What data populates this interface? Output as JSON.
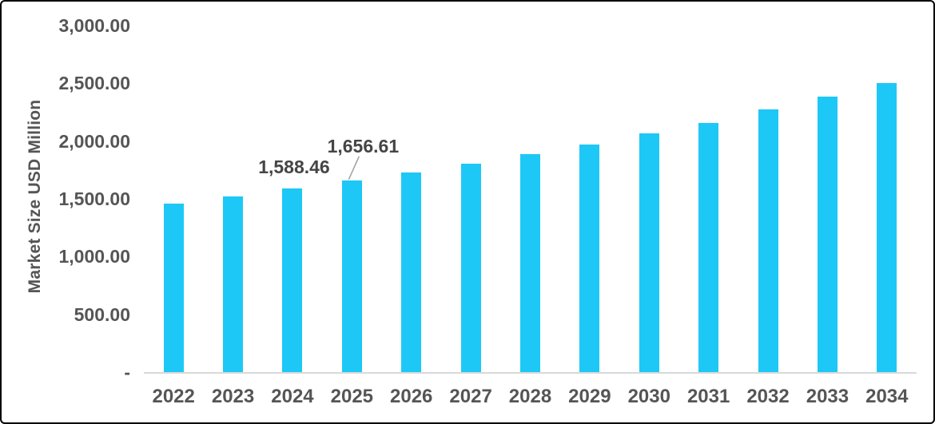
{
  "chart": {
    "y_axis": {
      "title": "Market Size USD Million",
      "tick_labels": [
        "3,000.00",
        "2,500.00",
        "2,000.00",
        "1,500.00",
        "1,000.00",
        "500.00",
        "-"
      ],
      "tick_values": [
        3000,
        2500,
        2000,
        1500,
        1000,
        500,
        0
      ]
    },
    "colors": {
      "bar": "#1dc8f6",
      "axis_text": "#555555",
      "data_label_text": "#454545",
      "baseline": "#d9d9d9",
      "leader_line": "#a0a0a0",
      "border": "#000000"
    }
  },
  "chart_data": {
    "type": "bar",
    "categories": [
      "2022",
      "2023",
      "2024",
      "2025",
      "2026",
      "2027",
      "2028",
      "2029",
      "2030",
      "2031",
      "2032",
      "2033",
      "2034"
    ],
    "values": [
      1460,
      1520,
      1588.46,
      1656.61,
      1725,
      1807,
      1890,
      1972,
      2070,
      2158,
      2275,
      2385,
      2500
    ],
    "title": "",
    "xlabel": "",
    "ylabel": "Market Size USD Million",
    "ylim": [
      0,
      3000
    ],
    "grid": false,
    "legend": null,
    "bar_color": "#1dc8f6",
    "data_labels": [
      {
        "category": "2024",
        "label": "1,588.46"
      },
      {
        "category": "2025",
        "label": "1,656.61",
        "leader_line": true
      }
    ]
  }
}
